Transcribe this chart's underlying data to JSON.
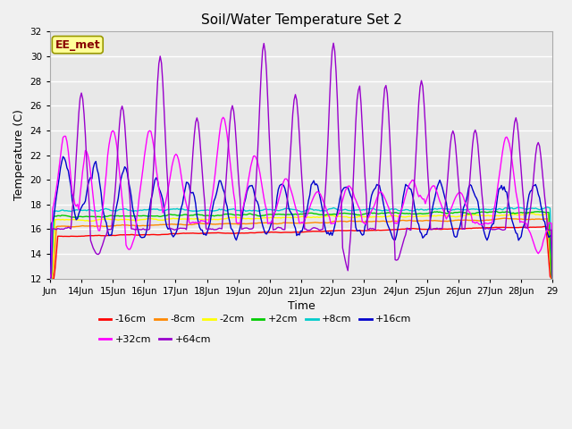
{
  "title": "Soil/Water Temperature Set 2",
  "xlabel": "Time",
  "ylabel": "Temperature (C)",
  "ylim": [
    12,
    32
  ],
  "yticks": [
    12,
    14,
    16,
    18,
    20,
    22,
    24,
    26,
    28,
    30,
    32
  ],
  "x_labels": [
    "Jun",
    "14Jun",
    "15Jun",
    "16Jun",
    "17Jun",
    "18Jun",
    "19Jun",
    "20Jun",
    "21Jun",
    "22Jun",
    "23Jun",
    "24Jun",
    "25Jun",
    "26Jun",
    "27Jun",
    "28Jun",
    "29"
  ],
  "legend_entries": [
    "-16cm",
    "-8cm",
    "-2cm",
    "+2cm",
    "+8cm",
    "+16cm",
    "+32cm",
    "+64cm"
  ],
  "legend_colors": [
    "#ff0000",
    "#ff8800",
    "#ffff00",
    "#00cc00",
    "#00cccc",
    "#0000cc",
    "#ff00ff",
    "#9900cc"
  ],
  "watermark_text": "EE_met",
  "watermark_bg": "#ffff99",
  "watermark_border": "#999900",
  "watermark_text_color": "#880000",
  "bg_color": "#e8e8e8",
  "plot_bg": "#e8e8e8",
  "fig_bg": "#f0f0f0",
  "grid_color": "#ffffff"
}
